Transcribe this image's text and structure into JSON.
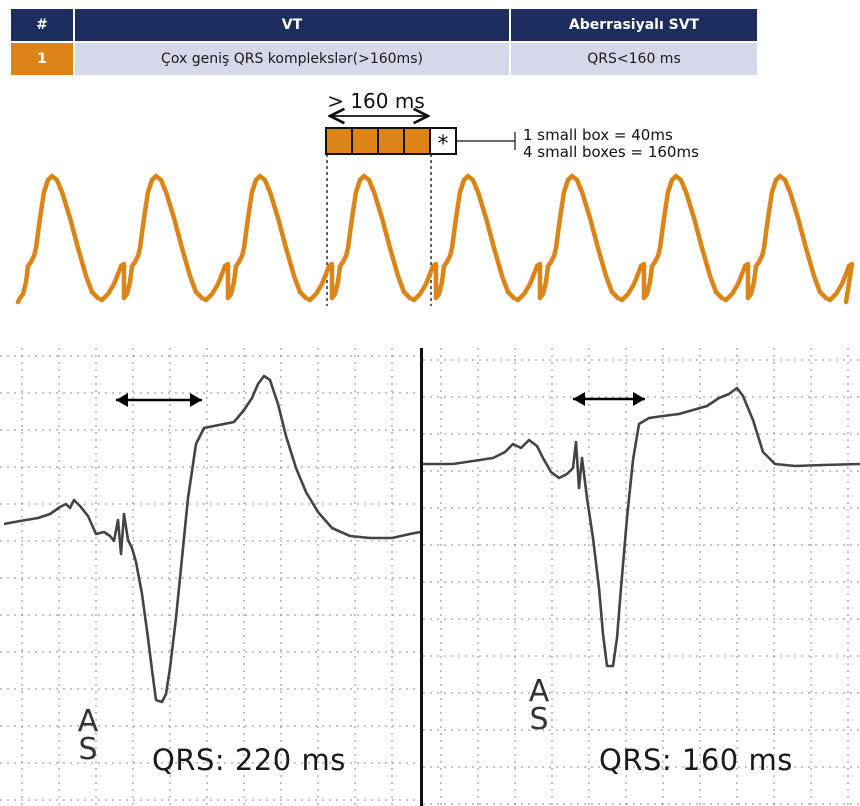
{
  "table": {
    "headers": [
      "#",
      "VT",
      "Aberrasiyalı SVT"
    ],
    "rows": [
      {
        "num": "1",
        "vt": "Çox geniş QRS komplekslər(>160ms)",
        "svt": "QRS<160 ms"
      }
    ]
  },
  "schematic": {
    "width_label": "> 160 ms",
    "legend_line1": "1 small box = 40ms",
    "legend_line2": "4 small boxes = 160ms",
    "box_marker": "*",
    "trace_color": "#dc8417"
  },
  "ecg": {
    "left": {
      "marker_top": "A",
      "marker_bottom": "S",
      "qrs_text": "QRS: 220 ms"
    },
    "right": {
      "marker_top": "A",
      "marker_bottom": "S",
      "qrs_text": "QRS: 160 ms"
    }
  },
  "colors": {
    "header_bg": "#1c2d5e",
    "row_bg": "#d4d8e9",
    "accent": "#dc8417"
  }
}
